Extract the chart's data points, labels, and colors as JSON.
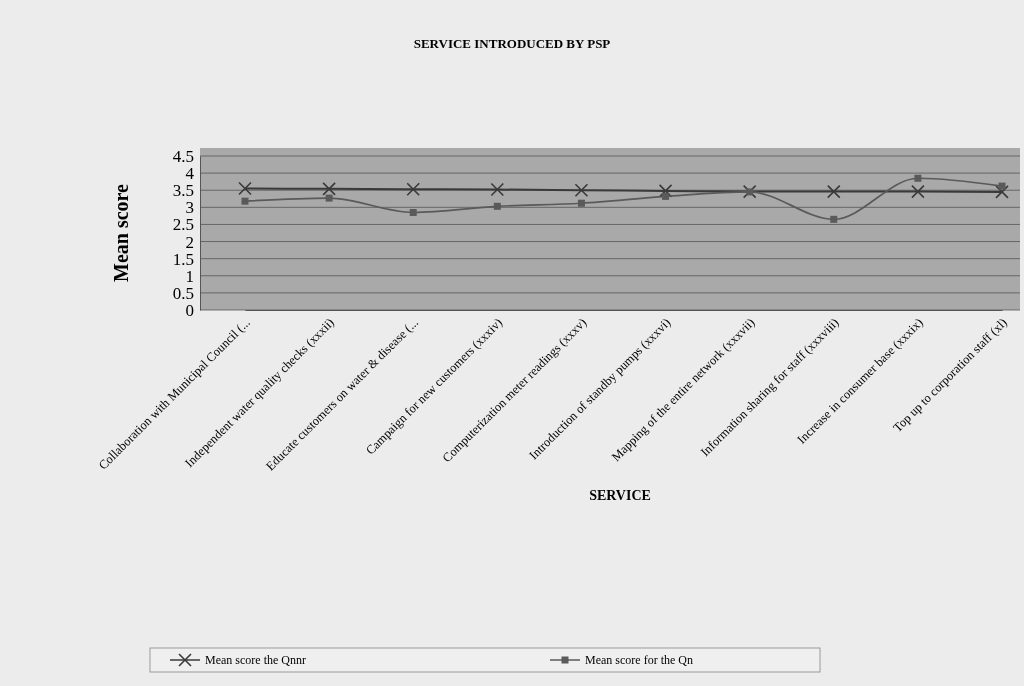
{
  "chart_data": {
    "type": "line",
    "title": "SERVICE INTRODUCED BY PSP",
    "xlabel": "SERVICE",
    "ylabel": "Mean score",
    "categories": [
      "Collaboration with Municipal Council (...",
      "Independent water quality checks (xxxii)",
      "Educate customers on water & disease (...",
      "Campaign for new customers (xxxiv)",
      "Computerization meter readings (xxxv)",
      "Introduction of standby pumps (xxxvi)",
      "Mapping of the entire network (xxxvii)",
      "Information sharing for staff (xxxviii)",
      "Increase in consumer base (xxxix)",
      "Top up to corporation staff (xl)"
    ],
    "series": [
      {
        "name": "Mean score the Qnnr",
        "color": "#3a3a3a",
        "marker": "cross",
        "values": [
          3.55,
          3.54,
          3.53,
          3.52,
          3.5,
          3.48,
          3.46,
          3.46,
          3.46,
          3.45
        ]
      },
      {
        "name": "Mean score for the Qn",
        "color": "#5a5a5a",
        "marker": "square",
        "values": [
          3.18,
          3.27,
          2.85,
          3.03,
          3.12,
          3.32,
          3.45,
          2.65,
          3.85,
          3.62
        ]
      }
    ],
    "ylim": [
      0,
      4.5
    ],
    "yticks": [
      0,
      0.5,
      1,
      1.5,
      2,
      2.5,
      3,
      3.5,
      4,
      4.5
    ],
    "grid": "y",
    "legend": "bottom"
  }
}
